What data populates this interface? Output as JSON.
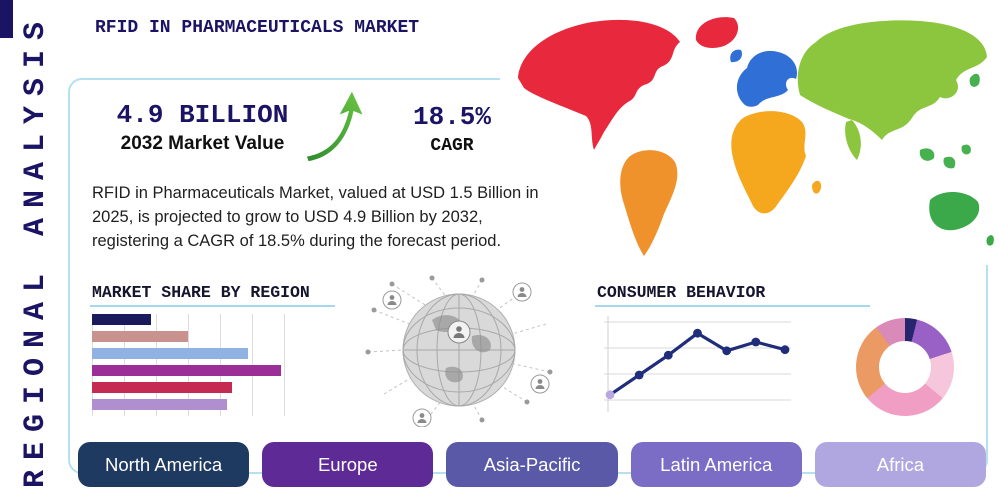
{
  "title": "RFID IN PHARMACEUTICALS MARKET",
  "vertical_label": "REGIONAL ANALYSIS",
  "highlight": {
    "value": "4.9 BILLION",
    "value_label": "2032 Market Value",
    "cagr": "18.5%",
    "cagr_label": "CAGR"
  },
  "description": "RFID in Pharmaceuticals Market, valued at USD 1.5 Billion in 2025, is projected to grow to USD 4.9 Billion by 2032, registering a CAGR of 18.5% during the forecast period.",
  "sections": {
    "market_share_title": "MARKET SHARE BY REGION",
    "consumer_behavior_title": "CONSUMER BEHAVIOR"
  },
  "region_buttons": [
    {
      "label": "North America",
      "color": "#1e3a60"
    },
    {
      "label": "Europe",
      "color": "#5d2a96"
    },
    {
      "label": "Asia-Pacific",
      "color": "#5959a8"
    },
    {
      "label": "Latin America",
      "color": "#7b6cc6"
    },
    {
      "label": "Africa",
      "color": "#b1a7e0"
    }
  ],
  "map_colors": {
    "north_america": "#e8293d",
    "greenland": "#e8293d",
    "south_america": "#f0922c",
    "europe": "#2f6fd6",
    "uk": "#2f6fd6",
    "africa": "#f5a81e",
    "madagascar": "#f5a81e",
    "asia": "#8cc63e",
    "japan": "#46b14e",
    "southeast_asia": "#46b14e",
    "australia": "#3ba84a",
    "new_zealand": "#3ba84a"
  },
  "colors": {
    "navy": "#1b1464",
    "frame_border": "#b5e0ef",
    "heading_underline": "#a5d8ec"
  },
  "chart_data": [
    {
      "type": "bar",
      "title": "MARKET SHARE BY REGION",
      "orientation": "horizontal",
      "categories": null,
      "values": [
        30,
        49,
        80,
        97,
        72,
        69
      ],
      "xlim": [
        0,
        100
      ],
      "grid": true,
      "colors": [
        "#1a1a5c",
        "#c9928e",
        "#8fb2e3",
        "#9c2f97",
        "#c52a52",
        "#b08fd0"
      ]
    },
    {
      "type": "line",
      "title": "CONSUMER BEHAVIOR",
      "x": [
        1,
        2,
        3,
        4,
        5,
        6,
        7
      ],
      "values": [
        1.2,
        3.0,
        4.8,
        6.8,
        5.2,
        6.0,
        5.3
      ],
      "ylim": [
        0,
        8
      ],
      "grid": true,
      "line_color": "#1f2d7b",
      "marker_color": "#1f2d7b",
      "first_marker_color": "#b9a7e0"
    },
    {
      "type": "pie",
      "donut": true,
      "slices": [
        {
          "color": "#26266e",
          "value": 4
        },
        {
          "color": "#9960c6",
          "value": 16
        },
        {
          "color": "#f6c6dc",
          "value": 16
        },
        {
          "color": "#f19ec4",
          "value": 28
        },
        {
          "color": "#ec9a64",
          "value": 26
        },
        {
          "color": "#d98ab8",
          "value": 10
        }
      ]
    }
  ]
}
